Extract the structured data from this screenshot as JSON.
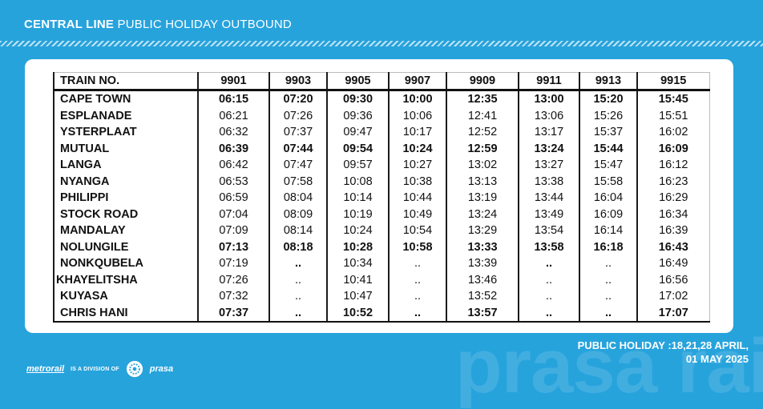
{
  "header": {
    "title_bold": "CENTRAL LINE",
    "title_rest": "PUBLIC HOLIDAY OUTBOUND"
  },
  "timetable": {
    "corner_label": "TRAIN NO.",
    "trains": [
      "9901",
      "9903",
      "9905",
      "9907",
      "9909",
      "9911",
      "9913",
      "9915"
    ],
    "rows": [
      {
        "station": "CAPE TOWN",
        "times": [
          "06:15",
          "07:20",
          "09:30",
          "10:00",
          "12:35",
          "13:00",
          "15:20",
          "15:45"
        ],
        "bold": true
      },
      {
        "station": "ESPLANADE",
        "times": [
          "06:21",
          "07:26",
          "09:36",
          "10:06",
          "12:41",
          "13:06",
          "15:26",
          "15:51"
        ],
        "bold": false
      },
      {
        "station": "YSTERPLAAT",
        "times": [
          "06:32",
          "07:37",
          "09:47",
          "10:17",
          "12:52",
          "13:17",
          "15:37",
          "16:02"
        ],
        "bold": false
      },
      {
        "station": "MUTUAL",
        "times": [
          "06:39",
          "07:44",
          "09:54",
          "10:24",
          "12:59",
          "13:24",
          "15:44",
          "16:09"
        ],
        "bold": true
      },
      {
        "station": "LANGA",
        "times": [
          "06:42",
          "07:47",
          "09:57",
          "10:27",
          "13:02",
          "13:27",
          "15:47",
          "16:12"
        ],
        "bold": false
      },
      {
        "station": "NYANGA",
        "times": [
          "06:53",
          "07:58",
          "10:08",
          "10:38",
          "13:13",
          "13:38",
          "15:58",
          "16:23"
        ],
        "bold": false
      },
      {
        "station": "PHILIPPI",
        "times": [
          "06:59",
          "08:04",
          "10:14",
          "10:44",
          "13:19",
          "13:44",
          "16:04",
          "16:29"
        ],
        "bold": false
      },
      {
        "station": "STOCK ROAD",
        "times": [
          "07:04",
          "08:09",
          "10:19",
          "10:49",
          "13:24",
          "13:49",
          "16:09",
          "16:34"
        ],
        "bold": false
      },
      {
        "station": "MANDALAY",
        "times": [
          "07:09",
          "08:14",
          "10:24",
          "10:54",
          "13:29",
          "13:54",
          "16:14",
          "16:39"
        ],
        "bold": false
      },
      {
        "station": "NOLUNGILE",
        "times": [
          "07:13",
          "08:18",
          "10:28",
          "10:58",
          "13:33",
          "13:58",
          "16:18",
          "16:43"
        ],
        "bold": true
      },
      {
        "station": "NONKQUBELA",
        "times": [
          "07:19",
          "..",
          "10:34",
          "..",
          "13:39",
          "..",
          "..",
          "16:49"
        ],
        "bold": false,
        "bold_cols": [
          1,
          5
        ]
      },
      {
        "station": "KHAYELITSHA",
        "times": [
          "07:26",
          "..",
          "10:41",
          "..",
          "13:46",
          "..",
          "..",
          "16:56"
        ],
        "bold": false,
        "indent": false
      },
      {
        "station": "KUYASA",
        "times": [
          "07:32",
          "..",
          "10:47",
          "..",
          "13:52",
          "..",
          "..",
          "17:02"
        ],
        "bold": false
      },
      {
        "station": "CHRIS HANI",
        "times": [
          "07:37",
          "..",
          "10:52",
          "..",
          "13:57",
          "..",
          "..",
          "17:07"
        ],
        "bold": true
      }
    ]
  },
  "holiday_note": {
    "line1": "PUBLIC HOLIDAY :18,21,28 APRIL,",
    "line2": "01 MAY 2025"
  },
  "footer": {
    "metrorail": "metrorail",
    "division": "IS A DIVISION OF",
    "prasa": "prasa",
    "prasa_logo_icon": "prasa-logo-icon"
  },
  "watermark": "prasa rail",
  "colors": {
    "background": "#27a3dc",
    "card": "#ffffff",
    "text_on_blue": "#ffffff"
  }
}
